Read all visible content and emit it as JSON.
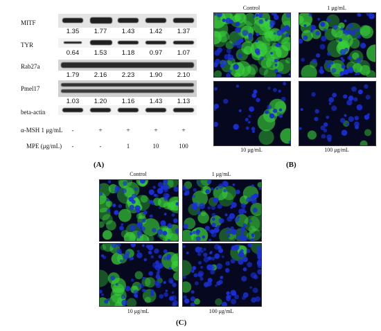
{
  "panel_a": {
    "label": "(A)",
    "blots": [
      {
        "name": "MITF",
        "values": [
          "1.35",
          "1.77",
          "1.43",
          "1.42",
          "1.37"
        ]
      },
      {
        "name": "TYR",
        "values": [
          "0.64",
          "1.53",
          "1.18",
          "0.97",
          "1.07"
        ]
      },
      {
        "name": "Rab27a",
        "values": [
          "1.79",
          "2.16",
          "2.23",
          "1.90",
          "2.10"
        ]
      },
      {
        "name": "Pmel17",
        "values": [
          "1.03",
          "1.20",
          "1.16",
          "1.43",
          "1.13"
        ]
      },
      {
        "name": "beta-actin",
        "values": []
      }
    ],
    "treatments": [
      {
        "name": "α-MSH 1 μg/mL",
        "values": [
          "-",
          "+",
          "+",
          "+",
          "+"
        ]
      },
      {
        "name": "MPE (μg/mL)",
        "values": [
          "-",
          "-",
          "1",
          "10",
          "100"
        ]
      }
    ]
  },
  "panel_b": {
    "label": "(B)",
    "titles": [
      "Control",
      "1 μg/mL",
      "10 μg/mL",
      "100 μg/mL"
    ]
  },
  "panel_c": {
    "label": "(C)",
    "titles": [
      "Control",
      "1 μg/mL",
      "10 μg/mL",
      "100 μg/mL"
    ]
  },
  "colors": {
    "nuclei": "#1a2fd6",
    "stain": "#3ad23a",
    "background": "#05081e"
  }
}
